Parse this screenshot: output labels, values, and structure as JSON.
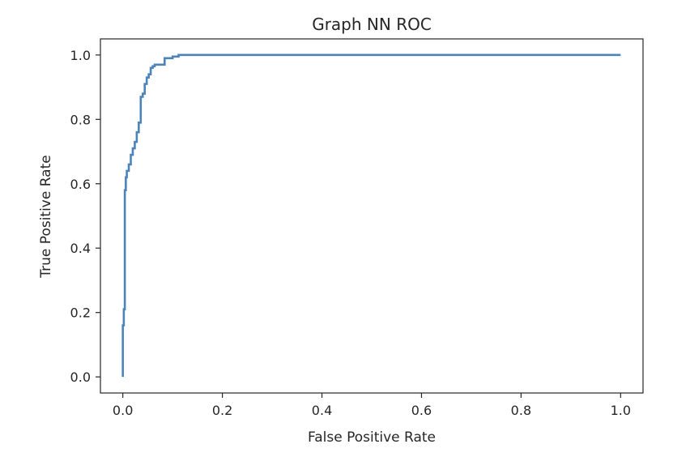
{
  "chart_data": {
    "type": "line",
    "title": "Graph NN ROC",
    "xlabel": "False Positive Rate",
    "ylabel": "True Positive Rate",
    "xlim": [
      -0.045,
      1.045
    ],
    "ylim": [
      -0.05,
      1.05
    ],
    "x_ticks": [
      "0.0",
      "0.2",
      "0.4",
      "0.6",
      "0.8",
      "1.0"
    ],
    "y_ticks": [
      "0.0",
      "0.2",
      "0.4",
      "0.6",
      "0.8",
      "1.0"
    ],
    "grid": false,
    "line_color": "#4c83b9",
    "series": [
      {
        "x": [
          0.0,
          0.0,
          0.002,
          0.002,
          0.004,
          0.004,
          0.006,
          0.006,
          0.008,
          0.008,
          0.012,
          0.012,
          0.016,
          0.016,
          0.02,
          0.02,
          0.024,
          0.024,
          0.028,
          0.028,
          0.032,
          0.032,
          0.036,
          0.036,
          0.04,
          0.04,
          0.044,
          0.044,
          0.048,
          0.048,
          0.052,
          0.052,
          0.056,
          0.056,
          0.06,
          0.06,
          0.064,
          0.064,
          0.084,
          0.084,
          0.1,
          0.1,
          0.112,
          0.112,
          1.0
        ],
        "y": [
          0.0,
          0.16,
          0.16,
          0.21,
          0.21,
          0.58,
          0.58,
          0.62,
          0.62,
          0.64,
          0.64,
          0.66,
          0.66,
          0.69,
          0.69,
          0.71,
          0.71,
          0.73,
          0.73,
          0.76,
          0.76,
          0.79,
          0.79,
          0.87,
          0.87,
          0.88,
          0.88,
          0.91,
          0.91,
          0.93,
          0.93,
          0.94,
          0.94,
          0.96,
          0.96,
          0.965,
          0.965,
          0.97,
          0.97,
          0.99,
          0.99,
          0.995,
          0.995,
          1.0,
          1.0
        ]
      }
    ]
  }
}
